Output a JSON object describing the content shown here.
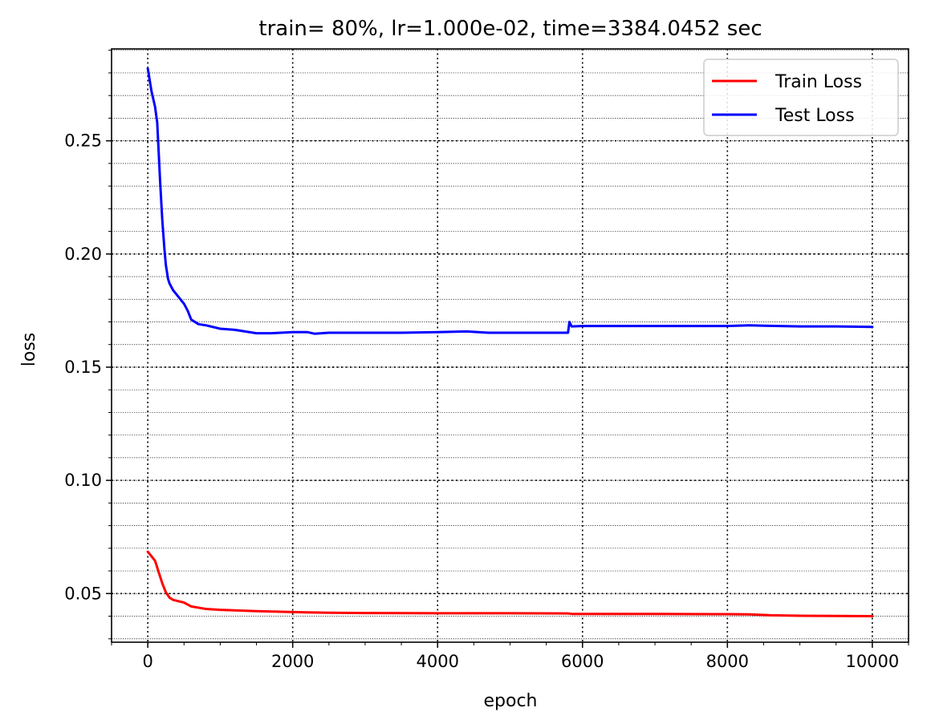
{
  "chart_data": {
    "type": "line",
    "title": "train= 80%, lr=1.000e-02, time=3384.0452 sec",
    "xlabel": "epoch",
    "ylabel": "loss",
    "xlim": [
      -500,
      10500
    ],
    "ylim": [
      0.0285,
      0.2906
    ],
    "xticks": [
      0,
      2000,
      4000,
      6000,
      8000,
      10000
    ],
    "xtick_labels": [
      "0",
      "2000",
      "4000",
      "6000",
      "8000",
      "10000"
    ],
    "yticks": [
      0.05,
      0.1,
      0.15,
      0.2,
      0.25
    ],
    "ytick_labels": [
      "0.05",
      "0.10",
      "0.15",
      "0.20",
      "0.25"
    ],
    "x_minor_step": 500,
    "y_minor_step": 0.01,
    "grid": "major dotted, minor fine dotted",
    "legend": "top-right",
    "series": [
      {
        "name": "Train Loss",
        "color": "#ff0000",
        "x": [
          0,
          50,
          100,
          150,
          200,
          250,
          300,
          350,
          400,
          500,
          600,
          800,
          1000,
          1500,
          2000,
          2500,
          3000,
          4000,
          5000,
          5800,
          5850,
          6000,
          7000,
          8000,
          8300,
          8600,
          9000,
          9500,
          10000
        ],
        "y": [
          0.0685,
          0.0665,
          0.0645,
          0.0595,
          0.0545,
          0.0505,
          0.0482,
          0.0472,
          0.0468,
          0.046,
          0.0443,
          0.0432,
          0.0428,
          0.0422,
          0.0418,
          0.0415,
          0.0414,
          0.0413,
          0.0413,
          0.0412,
          0.041,
          0.041,
          0.041,
          0.0409,
          0.0408,
          0.0404,
          0.0402,
          0.0401,
          0.04
        ]
      },
      {
        "name": "Test Loss",
        "color": "#0000ff",
        "x": [
          0,
          50,
          100,
          130,
          150,
          170,
          200,
          230,
          250,
          280,
          300,
          350,
          400,
          450,
          500,
          550,
          600,
          700,
          800,
          1000,
          1200,
          1500,
          1700,
          2000,
          2200,
          2300,
          2500,
          3000,
          3500,
          4000,
          4400,
          4700,
          5000,
          5500,
          5800,
          5820,
          5850,
          6000,
          7000,
          8000,
          8300,
          8500,
          9000,
          9500,
          10000
        ],
        "y": [
          0.282,
          0.272,
          0.265,
          0.258,
          0.245,
          0.232,
          0.215,
          0.202,
          0.195,
          0.189,
          0.187,
          0.184,
          0.182,
          0.18,
          0.178,
          0.175,
          0.171,
          0.169,
          0.1685,
          0.167,
          0.1665,
          0.165,
          0.165,
          0.1655,
          0.1655,
          0.1648,
          0.1652,
          0.1652,
          0.1652,
          0.1655,
          0.1658,
          0.1652,
          0.1652,
          0.1652,
          0.1652,
          0.17,
          0.168,
          0.1682,
          0.1682,
          0.1682,
          0.1685,
          0.1683,
          0.168,
          0.168,
          0.1678
        ]
      }
    ]
  }
}
